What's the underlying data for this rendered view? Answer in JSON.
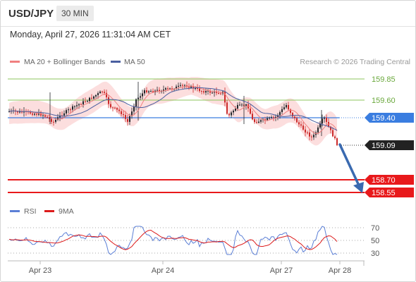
{
  "header": {
    "symbol": "USD/JPY",
    "timeframe": "30 MIN"
  },
  "datetime": "Monday, April 27, 2026 11:31:04 AM CET",
  "legend": {
    "ma20_label": "MA 20 + Bollinger Bands",
    "ma50_label": "MA 50",
    "ma20_color": "#f08080",
    "ma50_color": "#4a5fa0",
    "credit": "Research © 2026 Trading Central"
  },
  "levels": {
    "r2": "159.85",
    "r1": "159.60",
    "pivot": "159.40",
    "current": "159.09",
    "s1": "158.70",
    "s2": "158.55"
  },
  "colors": {
    "resistance": "#8cc65c",
    "pivot": "#3a7de0",
    "support": "#e8191b",
    "current": "#333333",
    "arrow": "#3a6ab0",
    "bull": "#22262b",
    "bear": "#cc2a2a",
    "band": "#fbd3d3"
  },
  "rsi": {
    "rsi_label": "RSI",
    "ma_label": "9MA",
    "levels": [
      "70",
      "50",
      "30"
    ],
    "rsi_color": "#5b7fd6",
    "ma_color": "#dd1b1b"
  },
  "xaxis": {
    "labels": [
      "Apr 23",
      "Apr 24",
      "Apr 27",
      "Apr 28"
    ]
  }
}
